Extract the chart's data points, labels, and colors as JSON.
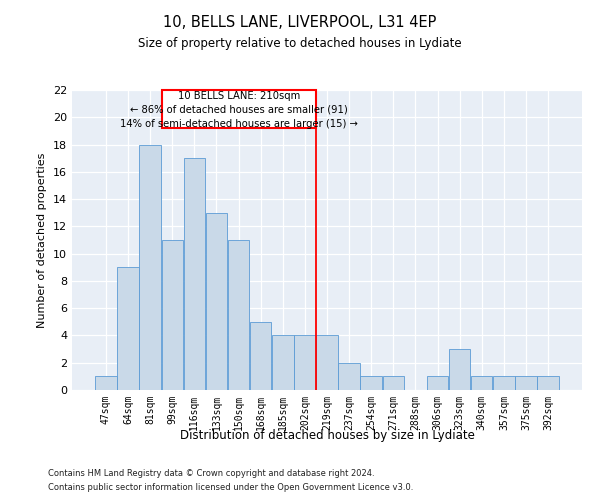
{
  "title1": "10, BELLS LANE, LIVERPOOL, L31 4EP",
  "title2": "Size of property relative to detached houses in Lydiate",
  "xlabel": "Distribution of detached houses by size in Lydiate",
  "ylabel": "Number of detached properties",
  "categories": [
    "47sqm",
    "64sqm",
    "81sqm",
    "99sqm",
    "116sqm",
    "133sqm",
    "150sqm",
    "168sqm",
    "185sqm",
    "202sqm",
    "219sqm",
    "237sqm",
    "254sqm",
    "271sqm",
    "288sqm",
    "306sqm",
    "323sqm",
    "340sqm",
    "357sqm",
    "375sqm",
    "392sqm"
  ],
  "values": [
    1,
    9,
    18,
    11,
    17,
    13,
    11,
    5,
    4,
    4,
    4,
    2,
    1,
    1,
    0,
    1,
    3,
    1,
    1,
    1,
    1
  ],
  "bar_color": "#c9d9e8",
  "bar_edge_color": "#5b9bd5",
  "ylim": [
    0,
    22
  ],
  "yticks": [
    0,
    2,
    4,
    6,
    8,
    10,
    12,
    14,
    16,
    18,
    20,
    22
  ],
  "red_line_x": 9.5,
  "annotation_title": "10 BELLS LANE: 210sqm",
  "annotation_line1": "← 86% of detached houses are smaller (91)",
  "annotation_line2": "14% of semi-detached houses are larger (15) →",
  "bg_color": "#e8eef6",
  "footer1": "Contains HM Land Registry data © Crown copyright and database right 2024.",
  "footer2": "Contains public sector information licensed under the Open Government Licence v3.0."
}
